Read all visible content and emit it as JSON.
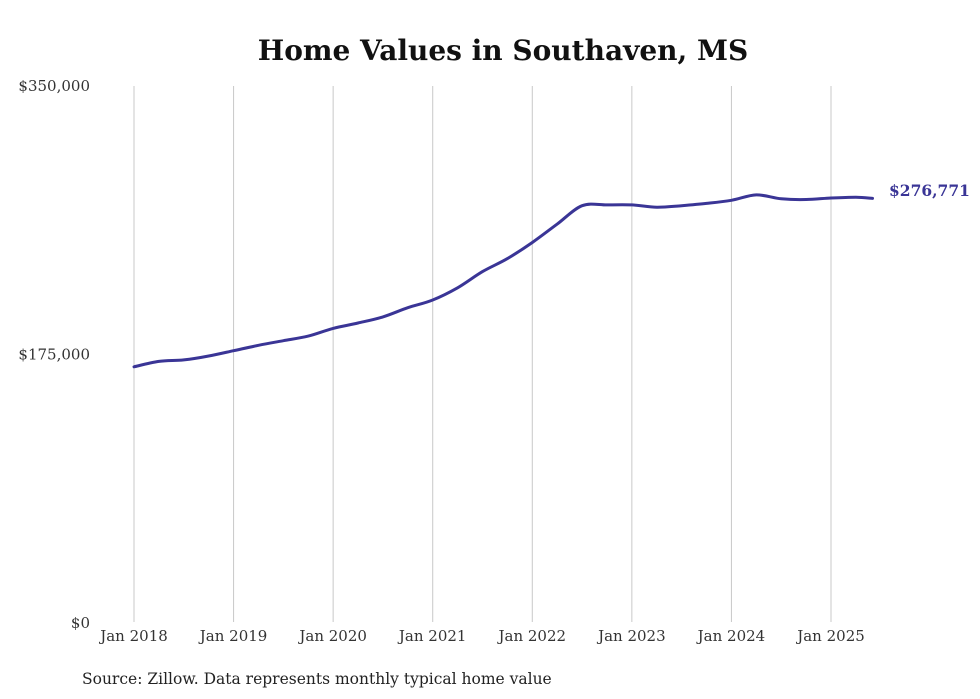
{
  "chart_data": {
    "type": "line",
    "title": "Home Values in Southaven, MS",
    "xlabel": "",
    "ylabel": "",
    "ylim": [
      0,
      350000
    ],
    "y_ticks": [
      {
        "value": 0,
        "label": "$0"
      },
      {
        "value": 175000,
        "label": "$175,000"
      },
      {
        "value": 350000,
        "label": "$350,000"
      }
    ],
    "x_ticks": [
      {
        "value": "2018-01",
        "label": "Jan 2018"
      },
      {
        "value": "2019-01",
        "label": "Jan 2019"
      },
      {
        "value": "2020-01",
        "label": "Jan 2020"
      },
      {
        "value": "2021-01",
        "label": "Jan 2021"
      },
      {
        "value": "2022-01",
        "label": "Jan 2022"
      },
      {
        "value": "2023-01",
        "label": "Jan 2023"
      },
      {
        "value": "2024-01",
        "label": "Jan 2024"
      },
      {
        "value": "2025-01",
        "label": "Jan 2025"
      }
    ],
    "grid": {
      "vertical": true,
      "horizontal": false
    },
    "line_color": "#3a3596",
    "end_label": "$276,771",
    "series": [
      {
        "x": [
          "2018-01",
          "2018-04",
          "2018-07",
          "2018-10",
          "2019-01",
          "2019-04",
          "2019-07",
          "2019-10",
          "2020-01",
          "2020-04",
          "2020-07",
          "2020-10",
          "2021-01",
          "2021-04",
          "2021-07",
          "2021-10",
          "2022-01",
          "2022-04",
          "2022-07",
          "2022-10",
          "2023-01",
          "2023-04",
          "2023-07",
          "2023-10",
          "2024-01",
          "2024-04",
          "2024-07",
          "2024-10",
          "2025-01",
          "2025-04",
          "2025-06"
        ],
        "values": [
          167000,
          170500,
          171500,
          174000,
          177500,
          181000,
          184000,
          187000,
          192000,
          195500,
          199500,
          205500,
          210500,
          218500,
          229000,
          237500,
          248000,
          260000,
          272000,
          272500,
          272500,
          271000,
          272000,
          273500,
          275500,
          279000,
          276500,
          276000,
          277000,
          277500,
          276771
        ]
      }
    ],
    "source": "Source: Zillow. Data represents monthly typical home value"
  }
}
